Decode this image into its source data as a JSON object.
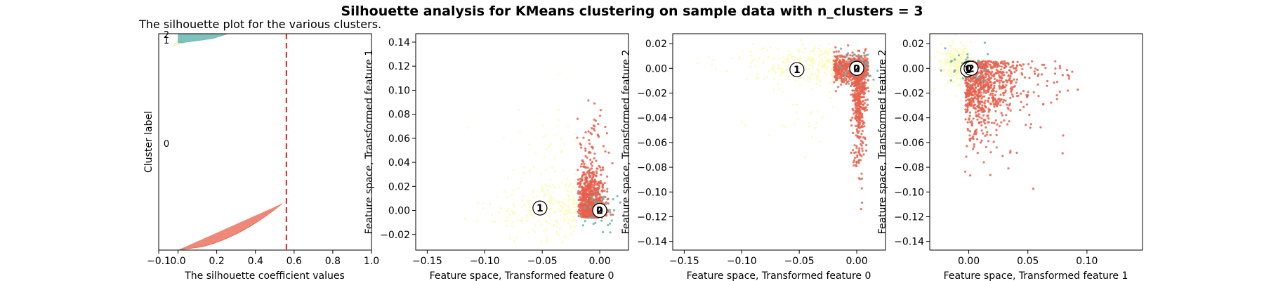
{
  "suptitle": "Silhouette analysis for KMeans clustering on sample data with n_clusters = 3",
  "colors": {
    "cluster_0": "#e8604c",
    "cluster_1": "#fbfcbf",
    "cluster_2": "#5fb3ac",
    "threshold": "#e3201b",
    "axis": "#000000"
  },
  "chart_data": [
    {
      "type": "area",
      "title": "The silhouette plot for the various clusters.",
      "xlabel": "The silhouette coefficient values",
      "ylabel": "Cluster label",
      "xlim": [
        -0.1,
        1.0
      ],
      "xticks": [
        "−0.1",
        "0.0",
        "0.2",
        "0.4",
        "0.6",
        "0.8",
        "1.0"
      ],
      "xtick_values": [
        -0.1,
        0.0,
        0.2,
        0.4,
        0.6,
        0.8,
        1.0
      ],
      "mean_silhouette": 0.56,
      "clusters": [
        {
          "label": "0",
          "max": 0.72,
          "share": 0.87
        },
        {
          "label": "1",
          "max": 0.03,
          "share": 0.03
        },
        {
          "label": "2",
          "max": 0.26,
          "share": 0.06
        }
      ]
    },
    {
      "type": "scatter",
      "xlabel": "Feature space, Transformed feature 0",
      "ylabel": "Feature space, Transformed feature 1",
      "xlim": [
        -0.16,
        0.025
      ],
      "ylim": [
        -0.033,
        0.147
      ],
      "xticks": [
        "−0.15",
        "−0.10",
        "−0.05",
        "0.00"
      ],
      "xtick_values": [
        -0.15,
        -0.1,
        -0.05,
        0.0
      ],
      "yticks": [
        "−0.02",
        "0.00",
        "0.02",
        "0.04",
        "0.06",
        "0.08",
        "0.10",
        "0.12",
        "0.14"
      ],
      "ytick_values": [
        -0.02,
        0.0,
        0.02,
        0.04,
        0.06,
        0.08,
        0.1,
        0.12,
        0.14
      ],
      "centers": [
        {
          "label": "0",
          "x": 0.0,
          "y": 0.0
        },
        {
          "label": "1",
          "x": -0.052,
          "y": 0.002
        },
        {
          "label": "2",
          "x": 0.0,
          "y": 0.0
        }
      ]
    },
    {
      "type": "scatter",
      "xlabel": "Feature space, Transformed feature 0",
      "ylabel": "Feature space, Transformed feature 2",
      "xlim": [
        -0.16,
        0.025
      ],
      "ylim": [
        -0.147,
        0.028
      ],
      "xticks": [
        "−0.15",
        "−0.10",
        "−0.05",
        "0.00"
      ],
      "xtick_values": [
        -0.15,
        -0.1,
        -0.05,
        0.0
      ],
      "yticks": [
        "−0.14",
        "−0.12",
        "−0.10",
        "−0.08",
        "−0.06",
        "−0.04",
        "−0.02",
        "0.00",
        "0.02"
      ],
      "ytick_values": [
        -0.14,
        -0.12,
        -0.1,
        -0.08,
        -0.06,
        -0.04,
        -0.02,
        0.0,
        0.02
      ],
      "centers": [
        {
          "label": "0",
          "x": 0.0,
          "y": 0.0
        },
        {
          "label": "1",
          "x": -0.052,
          "y": -0.001
        },
        {
          "label": "2",
          "x": 0.0,
          "y": 0.0
        }
      ]
    },
    {
      "type": "scatter",
      "xlabel": "Feature space, Transformed feature 1",
      "ylabel": "Feature space, Transformed feature 2",
      "xlim": [
        -0.033,
        0.147
      ],
      "ylim": [
        -0.147,
        0.028
      ],
      "xticks": [
        "0.00",
        "0.05",
        "0.10"
      ],
      "xtick_values": [
        0.0,
        0.05,
        0.1
      ],
      "yticks": [
        "−0.14",
        "−0.12",
        "−0.10",
        "−0.08",
        "−0.06",
        "−0.04",
        "−0.02",
        "0.00",
        "0.02"
      ],
      "ytick_values": [
        -0.14,
        -0.12,
        -0.1,
        -0.08,
        -0.06,
        -0.04,
        -0.02,
        0.0,
        0.02
      ],
      "centers": [
        {
          "label": "0",
          "x": 0.0,
          "y": 0.0
        },
        {
          "label": "1",
          "x": -0.001,
          "y": -0.001
        },
        {
          "label": "2",
          "x": 0.002,
          "y": 0.0
        }
      ]
    }
  ]
}
